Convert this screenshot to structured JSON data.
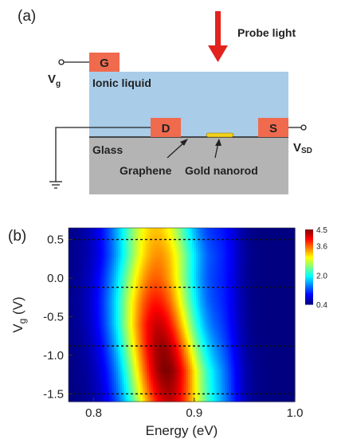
{
  "panel_a": {
    "label": "(a)",
    "probe_light": "Probe light",
    "gate_electrode": "G",
    "gate_voltage": {
      "main": "V",
      "sub": "g"
    },
    "ionic_liquid": "Ionic liquid",
    "drain_electrode": "D",
    "source_electrode": "S",
    "sd_voltage": {
      "main": "V",
      "sub": "SD"
    },
    "substrate": "Glass",
    "graphene": "Graphene",
    "gold_nanorod": "Gold nanorod",
    "colors": {
      "electrode": "#f06a4e",
      "ionic_liquid": "#a9cce8",
      "glass": "#b4b4b4",
      "arrow": "#e2221c",
      "nanorod": "#f2d21b"
    }
  },
  "panel_b": {
    "label": "(b)",
    "chart_data": {
      "type": "heatmap",
      "xlabel": "Energy (eV)",
      "ylabel": {
        "main": "V",
        "sub": "g",
        "unit": " (V)"
      },
      "x_ticks": [
        0.8,
        0.9,
        1.0
      ],
      "x_tick_labels": [
        "0.8",
        "0.9",
        "1.0"
      ],
      "y_ticks": [
        0.5,
        0.0,
        -0.5,
        -1.0,
        -1.5
      ],
      "y_tick_labels": [
        "0.5",
        "0.0",
        "-0.5",
        "-1.0",
        "-1.5"
      ],
      "xlim": [
        0.775,
        1.0
      ],
      "ylim": [
        -1.6,
        0.65
      ],
      "colorbar": {
        "range": [
          0.4,
          4.5
        ],
        "ticks": [
          4.5,
          3.6,
          2.0,
          0.4
        ],
        "tick_labels": [
          "4.5",
          "3.6",
          "2.0",
          "0.4"
        ]
      },
      "dashed_lines_vg": [
        0.5,
        -0.12,
        -0.88,
        -1.5
      ],
      "peaks": [
        {
          "vg": 0.6,
          "center_ev": 0.862,
          "intensity": 3.2
        },
        {
          "vg": 0.3,
          "center_ev": 0.864,
          "intensity": 3.4
        },
        {
          "vg": 0.0,
          "center_ev": 0.862,
          "intensity": 3.6
        },
        {
          "vg": -0.3,
          "center_ev": 0.862,
          "intensity": 3.9
        },
        {
          "vg": -0.6,
          "center_ev": 0.864,
          "intensity": 4.2
        },
        {
          "vg": -0.9,
          "center_ev": 0.868,
          "intensity": 4.4
        },
        {
          "vg": -1.2,
          "center_ev": 0.872,
          "intensity": 4.5
        },
        {
          "vg": -1.5,
          "center_ev": 0.874,
          "intensity": 4.3
        },
        {
          "vg": -1.6,
          "center_ev": 0.875,
          "intensity": 4.2
        }
      ]
    }
  }
}
